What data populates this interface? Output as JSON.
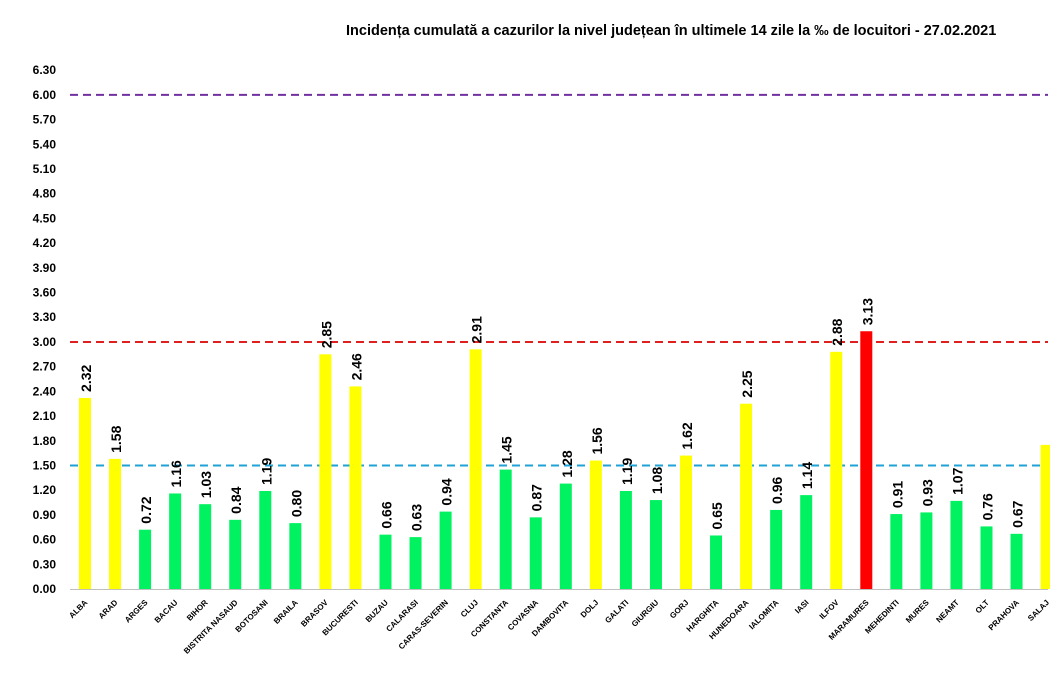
{
  "chart_data": {
    "type": "bar",
    "title": "Incidența cumulată a cazurilor la nivel județean în ultimele 14 zile la ‰ de locuitori - 27.02.2021",
    "xlabel": "",
    "ylabel": "",
    "ylim": [
      0,
      6.3
    ],
    "yticks": [
      "0.00",
      "0.30",
      "0.60",
      "0.90",
      "1.20",
      "1.50",
      "1.80",
      "2.10",
      "2.40",
      "2.70",
      "3.00",
      "3.30",
      "3.60",
      "3.90",
      "4.20",
      "4.50",
      "4.80",
      "5.10",
      "5.40",
      "5.70",
      "6.00",
      "6.30"
    ],
    "grid": false,
    "legend": "none",
    "categories": [
      "ALBA",
      "ARAD",
      "ARGES",
      "BACAU",
      "BIHOR",
      "BISTRITA NASAUD",
      "BOTOSANI",
      "BRAILA",
      "BRASOV",
      "BUCURESTI",
      "BUZAU",
      "CALARASI",
      "CARAS-SEVERIN",
      "CLUJ",
      "CONSTANTA",
      "COVASNA",
      "DAMBOVITA",
      "DOLJ",
      "GALATI",
      "GIURGIU",
      "GORJ",
      "HARGHITA",
      "HUNEDOARA",
      "IALOMITA",
      "IASI",
      "ILFOV",
      "MARAMURES",
      "MEHEDINTI",
      "MURES",
      "NEAMT",
      "OLT",
      "PRAHOVA",
      "SALAJ"
    ],
    "values": [
      2.32,
      1.58,
      0.72,
      1.16,
      1.03,
      0.84,
      1.19,
      0.8,
      2.85,
      2.46,
      0.66,
      0.63,
      0.94,
      2.91,
      1.45,
      0.87,
      1.28,
      1.56,
      1.19,
      1.08,
      1.62,
      0.65,
      2.25,
      0.96,
      1.14,
      2.88,
      3.13,
      0.91,
      0.93,
      1.07,
      0.76,
      0.67,
      1.75
    ],
    "labels": [
      "2.32",
      "1.58",
      "0.72",
      "1.16",
      "1.03",
      "0.84",
      "1.19",
      "0.80",
      "2.85",
      "2.46",
      "0.66",
      "0.63",
      "0.94",
      "2.91",
      "1.45",
      "0.87",
      "1.28",
      "1.56",
      "1.19",
      "1.08",
      "1.62",
      "0.65",
      "2.25",
      "0.96",
      "1.14",
      "2.88",
      "3.13",
      "0.91",
      "0.93",
      "1.07",
      "0.76",
      "0.67",
      ""
    ],
    "thresholds": [
      {
        "value": 1.5,
        "color": "#1fa3d6"
      },
      {
        "value": 3.0,
        "color": "#e02020"
      },
      {
        "value": 6.0,
        "color": "#7030a0"
      }
    ],
    "colors": {
      "green": "#00f260",
      "yellow": "#ffff00",
      "red": "#ff0000"
    }
  }
}
